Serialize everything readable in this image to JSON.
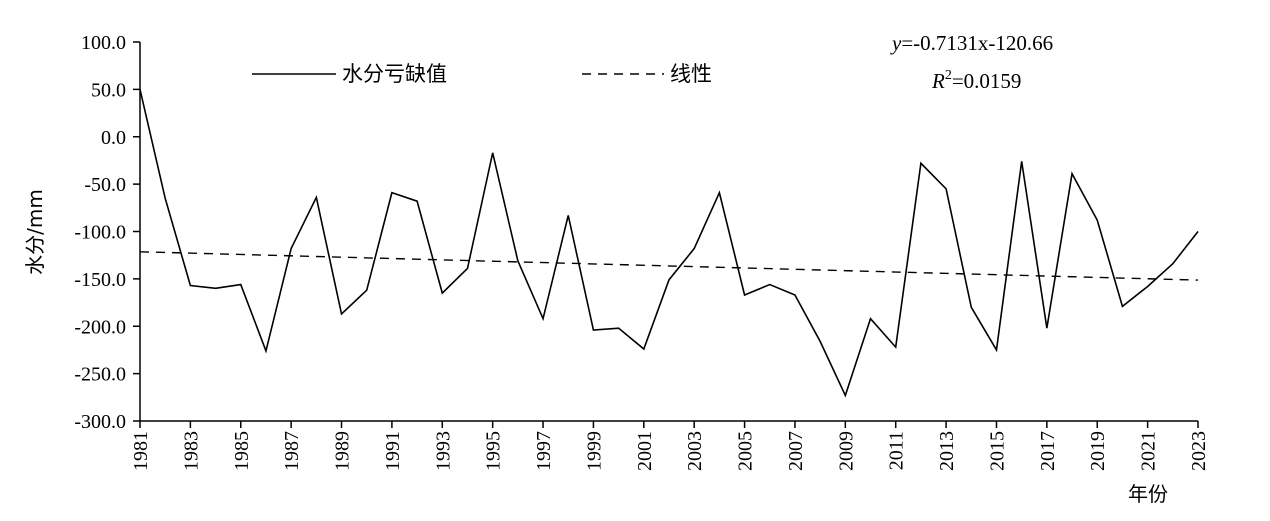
{
  "chart_data": {
    "type": "line",
    "ylabel": "水分/mm",
    "xlabel": "年份",
    "ylim": [
      -300,
      100
    ],
    "yticks": [
      100,
      50,
      0,
      -50,
      -100,
      -150,
      -200,
      -250,
      -300
    ],
    "ytick_labels": [
      "100.0",
      "50.0",
      "0.0",
      "-50.0",
      "-100.0",
      "-150.0",
      "-200.0",
      "-250.0",
      "-300.0"
    ],
    "xlim": [
      1981,
      2023
    ],
    "xticks": [
      1981,
      1983,
      1985,
      1987,
      1989,
      1991,
      1993,
      1995,
      1997,
      1999,
      2001,
      2003,
      2005,
      2007,
      2009,
      2011,
      2013,
      2015,
      2017,
      2019,
      2021,
      2023
    ],
    "equation": {
      "y_part": "y",
      "rest": "=-0.7131x-120.66",
      "r_part": "R",
      "sup": "2",
      "r_rest": "=0.0159"
    },
    "legend_placement": "top",
    "series": [
      {
        "name": "水分亏缺值",
        "style": "solid",
        "color": "#000000",
        "x": [
          1981,
          1982,
          1983,
          1984,
          1985,
          1986,
          1987,
          1988,
          1989,
          1990,
          1991,
          1992,
          1993,
          1994,
          1995,
          1996,
          1997,
          1998,
          1999,
          2000,
          2001,
          2002,
          2003,
          2004,
          2005,
          2006,
          2007,
          2008,
          2009,
          2010,
          2011,
          2012,
          2013,
          2014,
          2015,
          2016,
          2017,
          2018,
          2019,
          2020,
          2021,
          2022,
          2023
        ],
        "values": [
          50,
          -65,
          -157,
          -160,
          -156,
          -226,
          -118,
          -64,
          -187,
          -162,
          -59,
          -68,
          -165,
          -139,
          -17,
          -131,
          -192,
          -83,
          -204,
          -202,
          -224,
          -151,
          -118,
          -59,
          -167,
          -156,
          -167,
          -216,
          -273,
          -192,
          -222,
          -28,
          -55,
          -180,
          -225,
          -26,
          -202,
          -39,
          -88,
          -179,
          -158,
          -134,
          -100
        ]
      },
      {
        "name": "线性",
        "style": "dashed",
        "color": "#000000",
        "x": [
          1981,
          2023
        ],
        "values": [
          -121.4,
          -151.3
        ]
      }
    ]
  }
}
